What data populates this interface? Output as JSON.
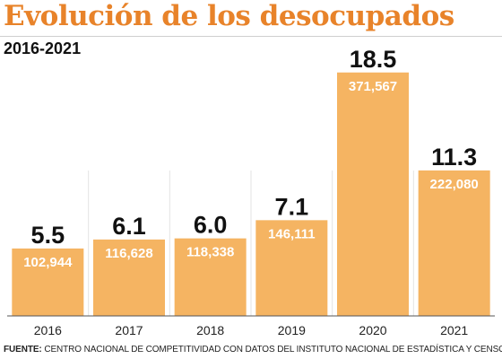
{
  "title": "Evolución de los desocupados",
  "subtitle": "2016-2021",
  "source": {
    "label": "FUENTE:",
    "text": " CENTRO NACIONAL DE COMPETITIVIDAD CON DATOS DEL INSTITUTO NACIONAL DE ESTADÍSTICA Y CENSO"
  },
  "colors": {
    "title": "#e8832a",
    "bar": "#f5b462",
    "bar_text": "#ffffff",
    "rate_text": "#111111"
  },
  "chart_data": {
    "type": "bar",
    "categories": [
      "2016",
      "2017",
      "2018",
      "2019",
      "2020",
      "2021"
    ],
    "values": [
      102944,
      116628,
      118338,
      146111,
      371567,
      222080
    ],
    "value_labels": [
      "102,944",
      "116,628",
      "118,338",
      "146,111",
      "371,567",
      "222,080"
    ],
    "rate_labels": [
      "5.5",
      "6.1",
      "6.0",
      "7.1",
      "18.5",
      "11.3"
    ],
    "title": "Evolución de los desocupados",
    "subtitle": "2016-2021",
    "xlabel": "",
    "ylabel": "",
    "ylim": [
      0,
      400000
    ],
    "grid": false,
    "legend": "none"
  }
}
